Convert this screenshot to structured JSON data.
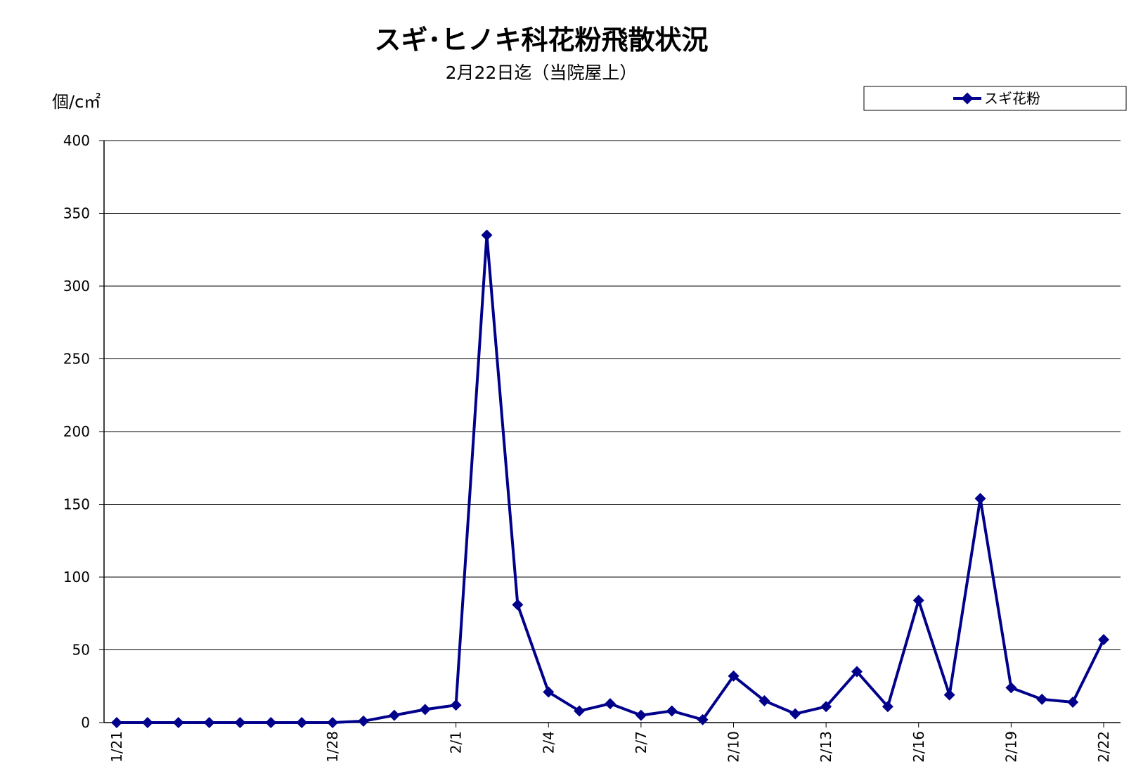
{
  "chart_data": {
    "type": "line",
    "title": "スギ･ヒノキ科花粉飛散状況",
    "subtitle": "2月22日迄（当院屋上）",
    "ylabel": "個/c㎡",
    "xlabel": "",
    "ylim": [
      0,
      400
    ],
    "yticks": [
      0,
      50,
      100,
      150,
      200,
      250,
      300,
      350,
      400
    ],
    "grid": true,
    "legend_position": "top-right",
    "x": [
      "1/21",
      "1/22",
      "1/23",
      "1/24",
      "1/25",
      "1/26",
      "1/27",
      "1/28",
      "1/29",
      "1/30",
      "1/31",
      "2/1",
      "2/2",
      "2/3",
      "2/4",
      "2/5",
      "2/6",
      "2/7",
      "2/8",
      "2/9",
      "2/10",
      "2/11",
      "2/12",
      "2/13",
      "2/14",
      "2/15",
      "2/16",
      "2/17",
      "2/18",
      "2/19",
      "2/20",
      "2/21",
      "2/22"
    ],
    "xtick_labels": [
      "1/21",
      "1/28",
      "2/1",
      "2/4",
      "2/7",
      "2/10",
      "2/13",
      "2/16",
      "2/19",
      "2/22"
    ],
    "series": [
      {
        "name": "スギ花粉",
        "color": "#00008B",
        "values": [
          0,
          0,
          0,
          0,
          0,
          0,
          0,
          0,
          1,
          5,
          9,
          12,
          335,
          81,
          21,
          8,
          13,
          5,
          8,
          2,
          32,
          15,
          6,
          11,
          35,
          11,
          84,
          19,
          154,
          24,
          16,
          14,
          57
        ]
      }
    ]
  }
}
